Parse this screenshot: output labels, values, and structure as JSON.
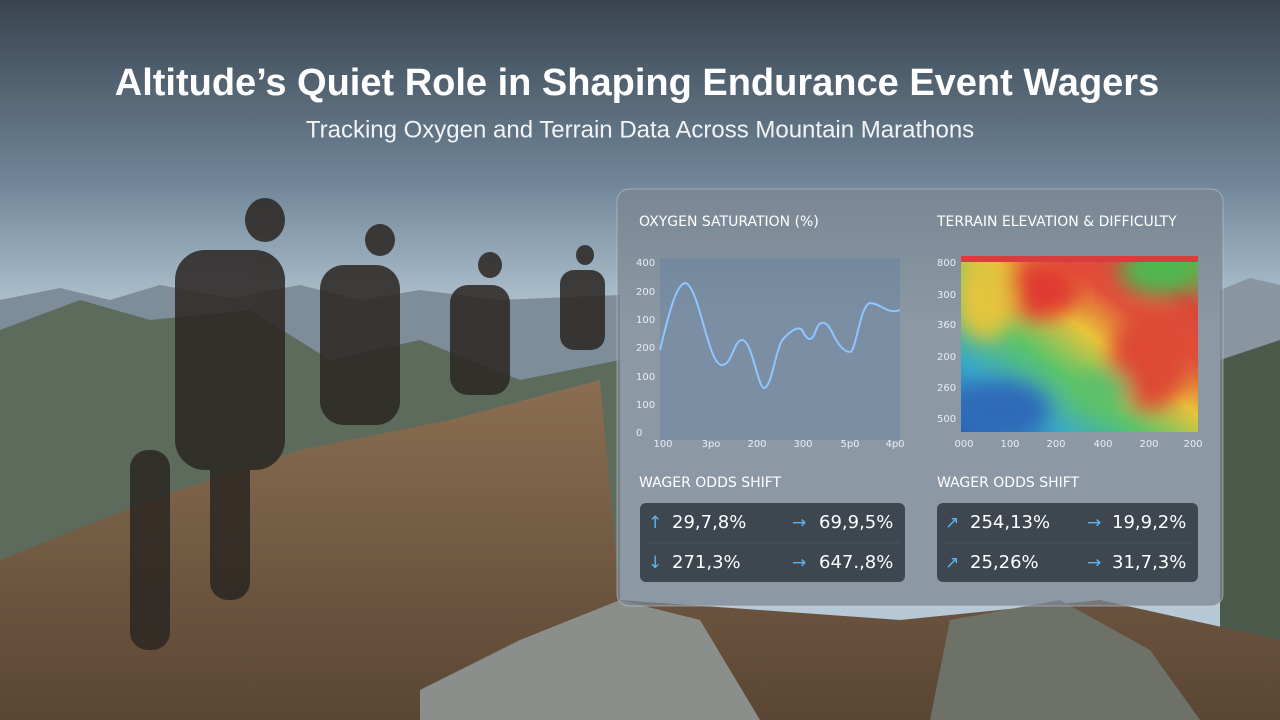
{
  "header": {
    "title": "Altitude’s Quiet Role in Shaping Endurance Event Wagers",
    "subtitle": "Tracking Oxygen and Terrain Data Across Mountain Marathons"
  },
  "panel": {
    "oxygen": {
      "title": "OXYGEN SATURATION (%)",
      "y_labels": [
        "400",
        "200",
        "100",
        "200",
        "100",
        "100",
        "0"
      ],
      "x_labels": [
        "100",
        "3po",
        "200",
        "300",
        "5p0",
        "4p0"
      ]
    },
    "terrain": {
      "title": "TERRAIN ELEVATION & DIFFICULTY",
      "y_labels": [
        "800",
        "300",
        "360",
        "200",
        "260",
        "500"
      ],
      "x_labels": [
        "000",
        "100",
        "200",
        "400",
        "200",
        "200"
      ]
    },
    "odds_left": {
      "title": "WAGER ODDS SHIFT",
      "cells": [
        {
          "icon": "↑",
          "text": "29,7,8%"
        },
        {
          "icon": "→",
          "text": "69,9,5%"
        },
        {
          "icon": "↓",
          "text": "271,3%"
        },
        {
          "icon": "→",
          "text": "647.,8%"
        }
      ]
    },
    "odds_right": {
      "title": "WAGER ODDS SHIFT",
      "cells": [
        {
          "icon": "↗",
          "text": "254,13%"
        },
        {
          "icon": "→",
          "text": "19,9,2%"
        },
        {
          "icon": "↗",
          "text": "25,26%"
        },
        {
          "icon": "→",
          "text": "31,7,3%"
        }
      ]
    }
  }
}
